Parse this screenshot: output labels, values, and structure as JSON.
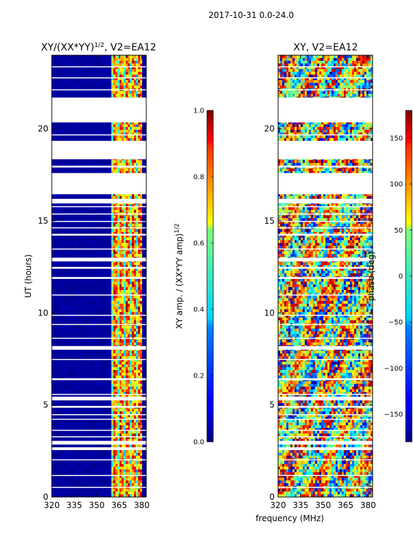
{
  "figure_title": "2017-10-31 0.0-24.0",
  "shared_xlabel": "frequency (MHz)",
  "chart_data": [
    {
      "type": "heatmap",
      "title_main": "XY/(XX*YY)",
      "title_sup": "1/2",
      "title_tail": ", V2=EA12",
      "xlabel": "frequency (MHz)",
      "ylabel": "UT (hours)",
      "xlim": [
        320,
        383
      ],
      "ylim": [
        0,
        24
      ],
      "xticks": [
        320,
        335,
        350,
        365,
        380
      ],
      "yticks": [
        0,
        5,
        10,
        15,
        20
      ],
      "active_band_mhz": [
        360,
        380
      ],
      "data_gaps_hours": [
        [
          0.5,
          0.55
        ],
        [
          1.15,
          1.2
        ],
        [
          2.0,
          2.05
        ],
        [
          2.55,
          2.7
        ],
        [
          2.85,
          3.05
        ],
        [
          3.25,
          3.3
        ],
        [
          3.6,
          3.65
        ],
        [
          4.2,
          4.25
        ],
        [
          4.45,
          4.5
        ],
        [
          4.85,
          4.95
        ],
        [
          5.25,
          5.45
        ],
        [
          5.55,
          5.6
        ],
        [
          6.35,
          6.45
        ],
        [
          7.45,
          7.5
        ],
        [
          8.0,
          8.2
        ],
        [
          8.6,
          8.65
        ],
        [
          9.35,
          9.4
        ],
        [
          9.85,
          9.9
        ],
        [
          10.95,
          11.0
        ],
        [
          11.85,
          11.95
        ],
        [
          12.4,
          12.5
        ],
        [
          12.8,
          13.0
        ],
        [
          13.45,
          13.5
        ],
        [
          14.2,
          14.3
        ],
        [
          14.6,
          14.65
        ],
        [
          14.95,
          15.0
        ],
        [
          15.35,
          15.4
        ],
        [
          15.75,
          15.8
        ],
        [
          15.95,
          16.2
        ],
        [
          16.45,
          17.6
        ],
        [
          17.9,
          18.0
        ],
        [
          18.35,
          19.35
        ],
        [
          19.65,
          19.7
        ],
        [
          20.35,
          21.7
        ],
        [
          22.1,
          22.15
        ],
        [
          22.75,
          22.8
        ],
        [
          23.35,
          23.4
        ]
      ],
      "colorbar": {
        "label_main": "XY amp. / (XX*YY amp)",
        "label_sup": "1/2",
        "range": [
          0.0,
          1.0
        ],
        "ticks": [
          "0.0",
          "0.2",
          "0.4",
          "0.6",
          "0.8",
          "1.0"
        ],
        "colormap": "jet"
      }
    },
    {
      "type": "heatmap",
      "title_main": "XY, V2=EA12",
      "xlabel": "frequency (MHz)",
      "ylabel": "",
      "xlim": [
        320,
        383
      ],
      "ylim": [
        0,
        24
      ],
      "xticks": [
        320,
        335,
        350,
        365,
        380
      ],
      "yticks": [
        0,
        5,
        10,
        15,
        20
      ],
      "data_gaps_hours": [
        [
          0.5,
          0.55
        ],
        [
          1.15,
          1.2
        ],
        [
          2.0,
          2.05
        ],
        [
          2.55,
          2.7
        ],
        [
          2.85,
          3.05
        ],
        [
          3.25,
          3.3
        ],
        [
          3.6,
          3.65
        ],
        [
          4.2,
          4.25
        ],
        [
          4.45,
          4.5
        ],
        [
          4.85,
          4.95
        ],
        [
          5.25,
          5.45
        ],
        [
          5.55,
          5.6
        ],
        [
          6.35,
          6.45
        ],
        [
          7.45,
          7.5
        ],
        [
          8.0,
          8.2
        ],
        [
          8.6,
          8.65
        ],
        [
          9.35,
          9.4
        ],
        [
          9.85,
          9.9
        ],
        [
          10.95,
          11.0
        ],
        [
          11.85,
          11.95
        ],
        [
          12.4,
          12.5
        ],
        [
          12.8,
          13.0
        ],
        [
          13.45,
          13.5
        ],
        [
          14.2,
          14.3
        ],
        [
          14.6,
          14.65
        ],
        [
          14.95,
          15.0
        ],
        [
          15.35,
          15.4
        ],
        [
          15.75,
          15.8
        ],
        [
          15.95,
          16.2
        ],
        [
          16.45,
          17.6
        ],
        [
          17.9,
          18.0
        ],
        [
          18.35,
          19.35
        ],
        [
          19.65,
          19.7
        ],
        [
          20.35,
          21.7
        ],
        [
          22.1,
          22.15
        ],
        [
          22.75,
          22.8
        ],
        [
          23.35,
          23.4
        ]
      ],
      "colorbar": {
        "label_main": "phase (deg)",
        "range": [
          -180,
          180
        ],
        "ticks": [
          "−150",
          "−100",
          "−50",
          "0",
          "50",
          "100",
          "150"
        ],
        "tick_values": [
          -150,
          -100,
          -50,
          0,
          50,
          100,
          150
        ],
        "colormap": "jet"
      }
    }
  ]
}
